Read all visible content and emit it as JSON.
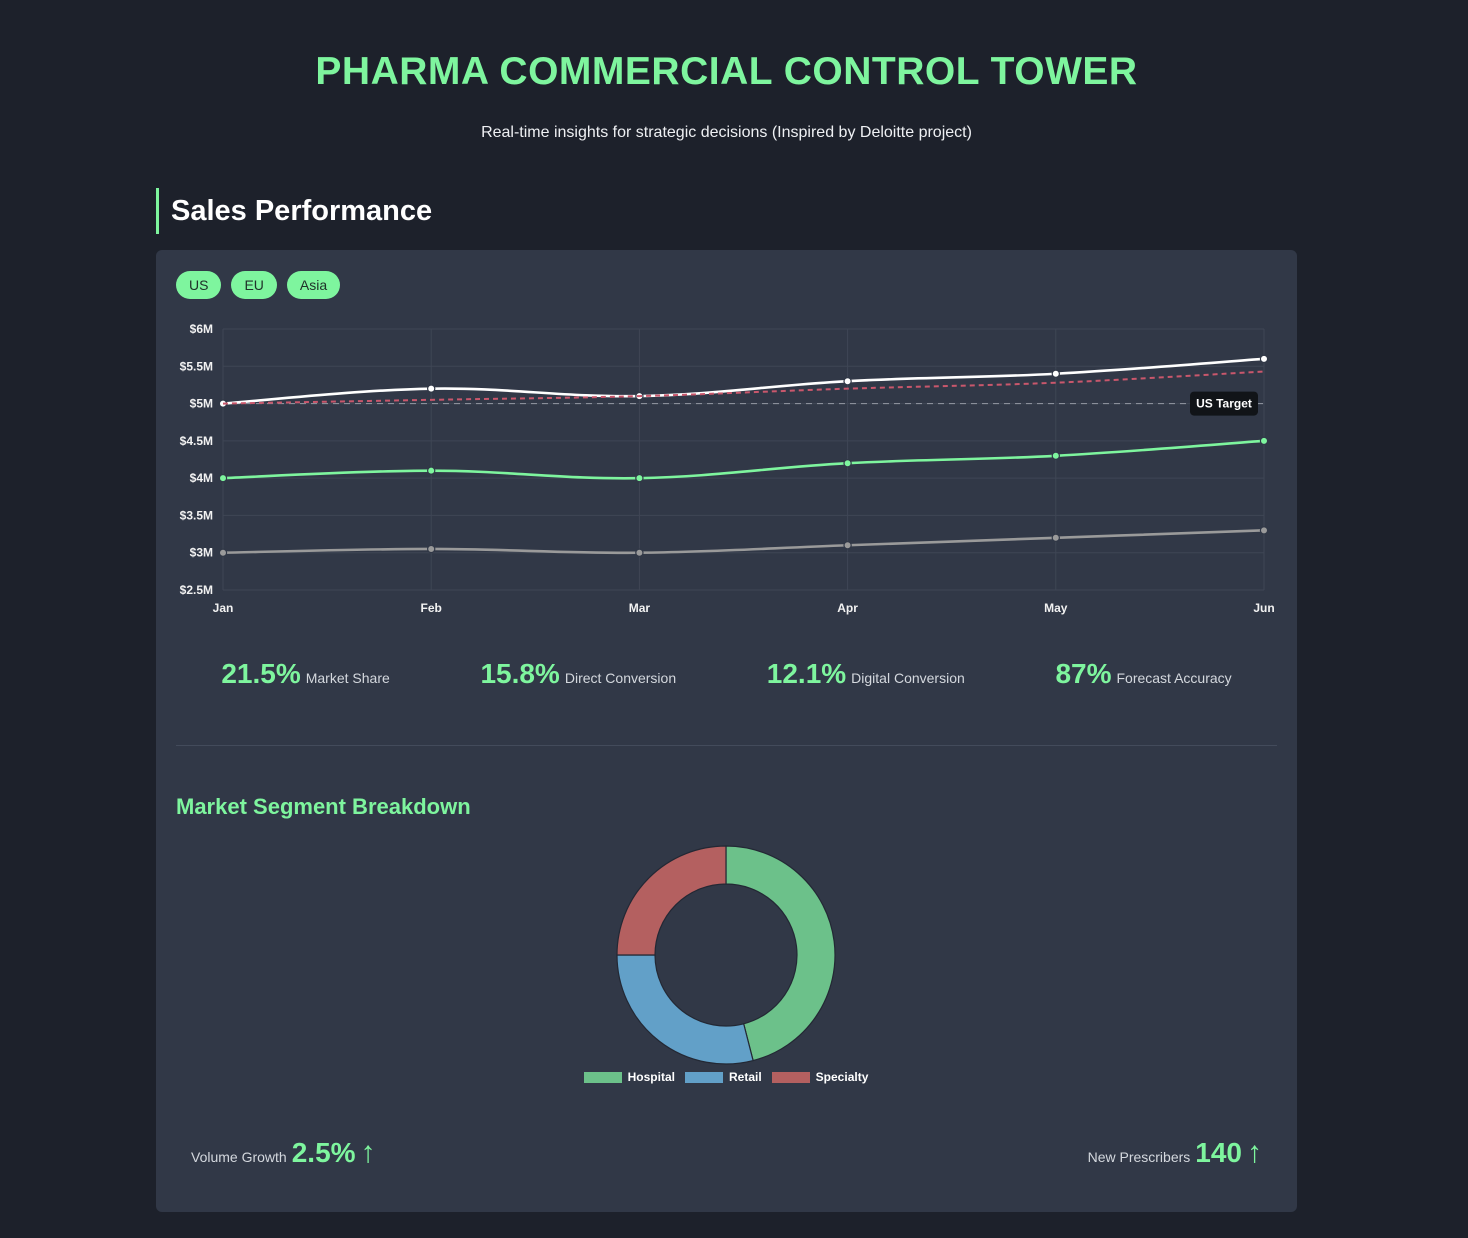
{
  "header": {
    "title": "PHARMA COMMERCIAL CONTROL TOWER",
    "subtitle": "Real-time insights for strategic decisions (Inspired by Deloitte project)"
  },
  "section": {
    "title": "Sales Performance"
  },
  "regions": [
    "US",
    "EU",
    "Asia"
  ],
  "kpis": [
    {
      "value": "21.5%",
      "label": "Market Share"
    },
    {
      "value": "15.8%",
      "label": "Direct Conversion"
    },
    {
      "value": "12.1%",
      "label": "Digital Conversion"
    },
    {
      "value": "87%",
      "label": "Forecast Accuracy"
    }
  ],
  "segment": {
    "title": "Market Segment Breakdown"
  },
  "footer": {
    "volume_growth": {
      "label": "Volume Growth",
      "value": "2.5%",
      "arrow": "↑"
    },
    "new_prescribers": {
      "label": "New Prescribers",
      "value": "140",
      "arrow": "↑"
    }
  },
  "chart_data": [
    {
      "type": "line",
      "x": [
        "Jan",
        "Feb",
        "Mar",
        "Apr",
        "May",
        "Jun"
      ],
      "y_ticks": [
        "$6M",
        "$5.5M",
        "$5M",
        "$4.5M",
        "$4M",
        "$3.5M",
        "$3M",
        "$2.5M"
      ],
      "ylim": [
        2.5,
        6
      ],
      "grid": true,
      "series": [
        {
          "values": [
            5.0,
            5.2,
            5.1,
            5.3,
            5.4,
            5.6
          ],
          "color": "#ffffff"
        },
        {
          "values": [
            4.0,
            4.1,
            4.0,
            4.2,
            4.3,
            4.5
          ],
          "color": "#7ef59e"
        },
        {
          "values": [
            3.0,
            3.05,
            3.0,
            3.1,
            3.2,
            3.3
          ],
          "color": "#9a9a9a"
        },
        {
          "values": [
            5.0,
            5.05,
            5.1,
            5.2,
            5.28,
            5.43
          ],
          "color": "#c9576c",
          "dashed": true
        }
      ],
      "annotation": {
        "label": "US Target",
        "y": 5.0
      }
    },
    {
      "type": "pie",
      "donut": true,
      "labels": [
        "Hospital",
        "Retail",
        "Specialty"
      ],
      "values": [
        46,
        29,
        25
      ],
      "colors": [
        "#6cc18a",
        "#62a0c8",
        "#b46060"
      ]
    }
  ]
}
